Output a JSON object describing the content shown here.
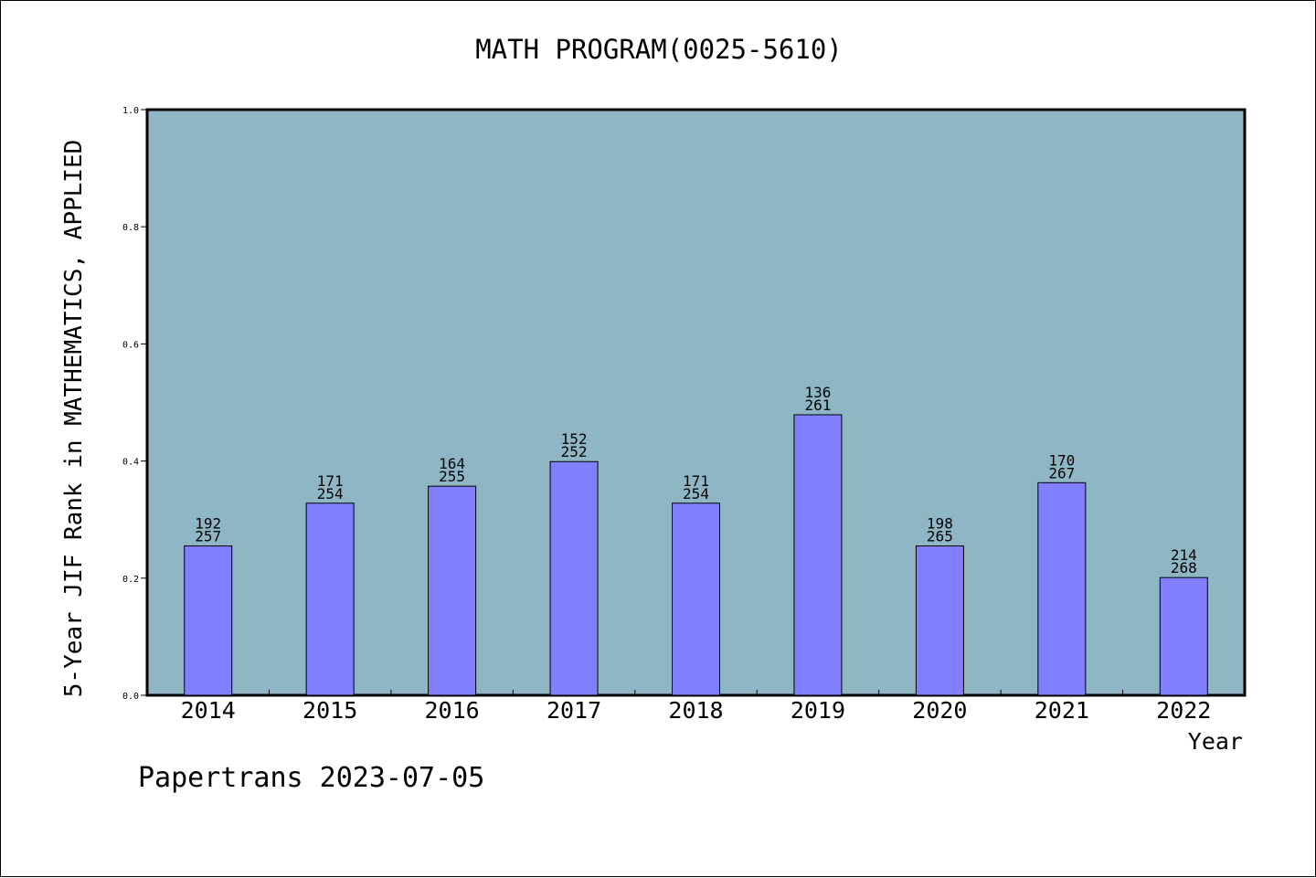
{
  "chart_data": {
    "type": "bar",
    "title": "MATH PROGRAM(0025-5610)",
    "xlabel": "Year",
    "ylabel": "5-Year JIF Rank in MATHEMATICS, APPLIED",
    "categories": [
      "2014",
      "2015",
      "2016",
      "2017",
      "2018",
      "2019",
      "2020",
      "2021",
      "2022"
    ],
    "values": [
      0.255,
      0.328,
      0.357,
      0.399,
      0.328,
      0.479,
      0.255,
      0.363,
      0.201
    ],
    "ranks": [
      "192",
      "171",
      "164",
      "152",
      "171",
      "136",
      "198",
      "170",
      "214"
    ],
    "totals": [
      "257",
      "254",
      "255",
      "252",
      "254",
      "261",
      "265",
      "267",
      "268"
    ],
    "ylim": [
      0,
      1.0
    ],
    "yticks": [
      "0.0",
      "0.2",
      "0.4",
      "0.6",
      "0.8",
      "1.0"
    ],
    "grid": false,
    "colors": {
      "plot_background": "#8fb6c5",
      "bar_fill": "#8080ff",
      "bar_stroke": "#000000"
    }
  },
  "footer": "Papertrans 2023-07-05"
}
